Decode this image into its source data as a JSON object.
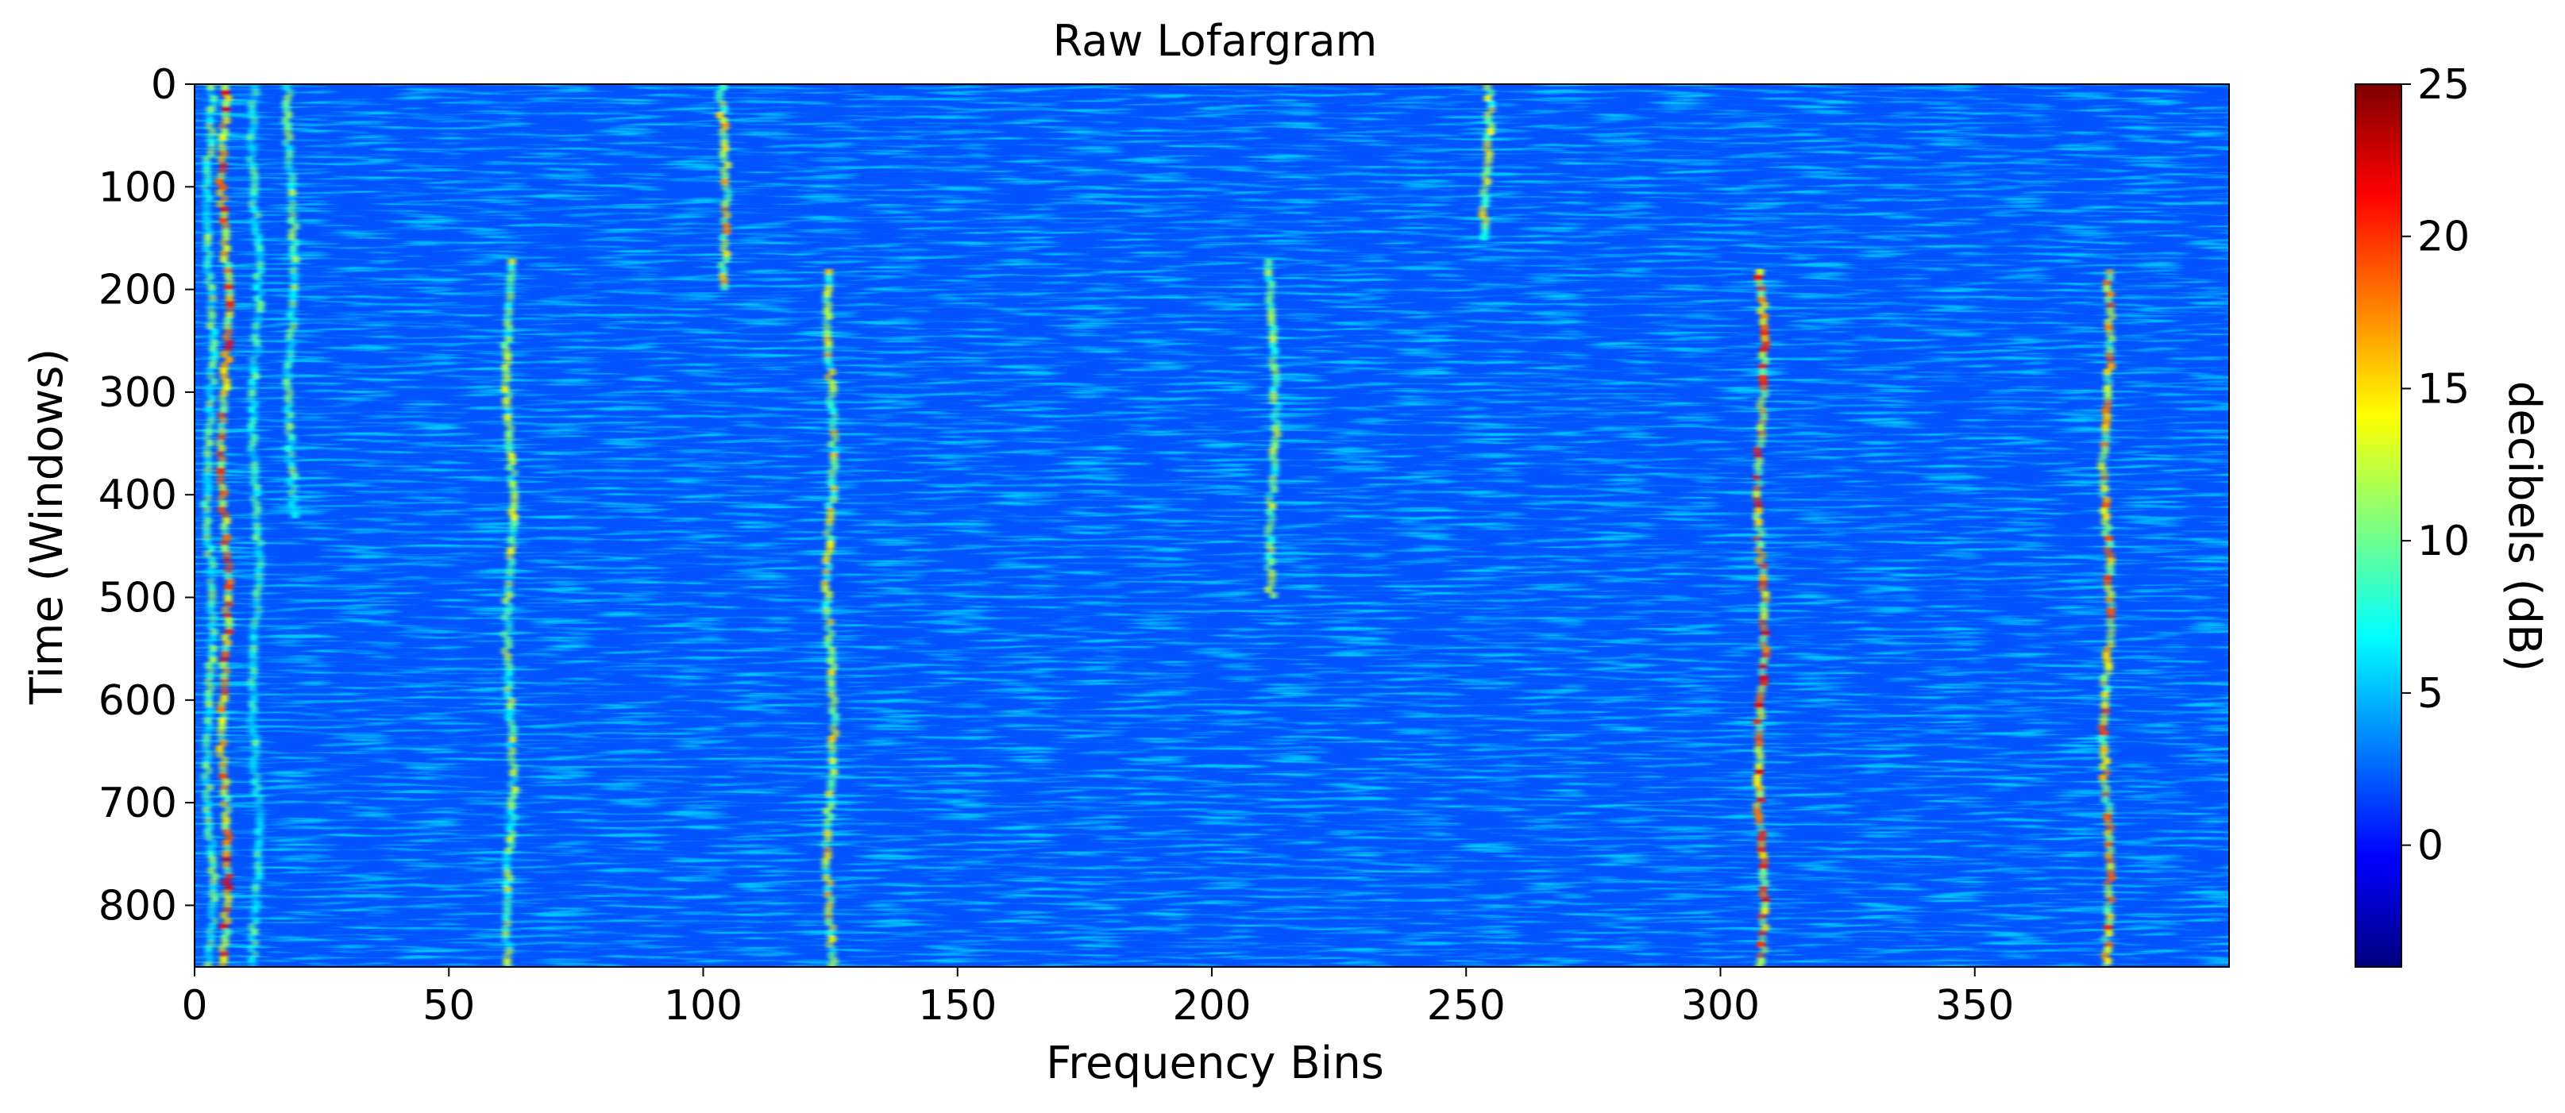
{
  "chart_data": {
    "type": "heatmap",
    "title": "Raw Lofargram",
    "xlabel": "Frequency Bins",
    "ylabel": "Time (Windows)",
    "colorbar_label": "decibels (dB)",
    "x_range": [
      0,
      400
    ],
    "y_range": [
      0,
      860
    ],
    "y_inverted": true,
    "x_ticks": [
      "0",
      "50",
      "100",
      "150",
      "200",
      "250",
      "300",
      "350"
    ],
    "y_ticks": [
      "0",
      "100",
      "200",
      "300",
      "400",
      "500",
      "600",
      "700",
      "800"
    ],
    "colorbar_range": [
      -4,
      25
    ],
    "colorbar_ticks": [
      "0",
      "5",
      "10",
      "15",
      "20",
      "25"
    ],
    "colormap": "jet",
    "colormap_stops": [
      "#00007f",
      "#0000ff",
      "#007fff",
      "#00ffff",
      "#7fff7f",
      "#ffff00",
      "#ff7f00",
      "#ff0000",
      "#7f0000"
    ],
    "noise_floor_db": 2,
    "tonal_tracks": [
      {
        "freq_bin": 3,
        "time_start": 0,
        "time_end": 860,
        "peak_db": 12
      },
      {
        "freq_bin": 6,
        "time_start": 0,
        "time_end": 860,
        "peak_db": 22
      },
      {
        "freq_bin": 12,
        "time_start": 0,
        "time_end": 860,
        "peak_db": 10
      },
      {
        "freq_bin": 19,
        "time_start": 0,
        "time_end": 420,
        "peak_db": 12
      },
      {
        "freq_bin": 62,
        "time_start": 170,
        "time_end": 860,
        "peak_db": 14
      },
      {
        "freq_bin": 104,
        "time_start": 0,
        "time_end": 200,
        "peak_db": 18
      },
      {
        "freq_bin": 125,
        "time_start": 180,
        "time_end": 860,
        "peak_db": 16
      },
      {
        "freq_bin": 212,
        "time_start": 170,
        "time_end": 500,
        "peak_db": 14
      },
      {
        "freq_bin": 254,
        "time_start": 0,
        "time_end": 150,
        "peak_db": 16
      },
      {
        "freq_bin": 308,
        "time_start": 180,
        "time_end": 860,
        "peak_db": 22
      },
      {
        "freq_bin": 376,
        "time_start": 180,
        "time_end": 860,
        "peak_db": 20
      }
    ]
  }
}
